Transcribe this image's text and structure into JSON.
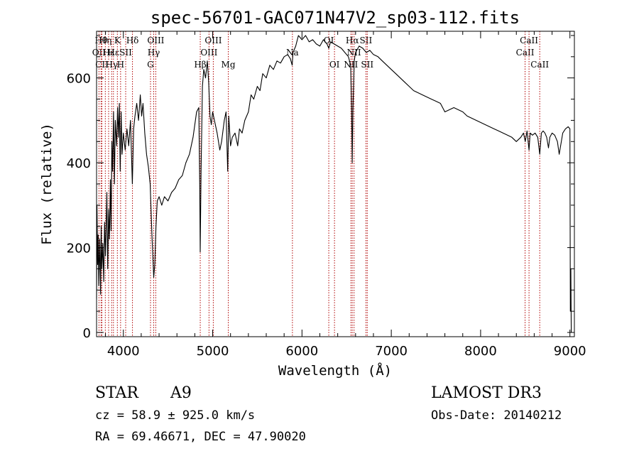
{
  "chart_data": {
    "type": "line",
    "title": "spec-56701-GAC071N47V2_sp03-112.fits",
    "xlabel": "Wavelength (Å)",
    "ylabel": "Flux (relative)",
    "xlim": [
      3700,
      9050
    ],
    "ylim": [
      -10,
      710
    ],
    "xticks": [
      4000,
      5000,
      6000,
      7000,
      8000,
      9000
    ],
    "yticks": [
      0,
      200,
      400,
      600
    ],
    "grid": false,
    "series": [
      {
        "points": [
          [
            3700,
            80
          ],
          [
            3705,
            300
          ],
          [
            3712,
            160
          ],
          [
            3718,
            230
          ],
          [
            3725,
            110
          ],
          [
            3735,
            220
          ],
          [
            3745,
            90
          ],
          [
            3752,
            250
          ],
          [
            3760,
            150
          ],
          [
            3770,
            210
          ],
          [
            3780,
            120
          ],
          [
            3790,
            260
          ],
          [
            3800,
            180
          ],
          [
            3815,
            330
          ],
          [
            3825,
            150
          ],
          [
            3835,
            290
          ],
          [
            3845,
            220
          ],
          [
            3855,
            360
          ],
          [
            3862,
            240
          ],
          [
            3872,
            450
          ],
          [
            3880,
            380
          ],
          [
            3890,
            520
          ],
          [
            3900,
            350
          ],
          [
            3910,
            500
          ],
          [
            3925,
            440
          ],
          [
            3935,
            530
          ],
          [
            3945,
            460
          ],
          [
            3955,
            540
          ],
          [
            3965,
            380
          ],
          [
            3975,
            520
          ],
          [
            3985,
            420
          ],
          [
            4000,
            470
          ],
          [
            4020,
            430
          ],
          [
            4040,
            480
          ],
          [
            4060,
            440
          ],
          [
            4080,
            500
          ],
          [
            4101,
            350
          ],
          [
            4115,
            480
          ],
          [
            4130,
            510
          ],
          [
            4150,
            540
          ],
          [
            4170,
            500
          ],
          [
            4190,
            560
          ],
          [
            4205,
            510
          ],
          [
            4220,
            540
          ],
          [
            4240,
            470
          ],
          [
            4260,
            420
          ],
          [
            4280,
            390
          ],
          [
            4300,
            350
          ],
          [
            4320,
            230
          ],
          [
            4340,
            130
          ],
          [
            4352,
            160
          ],
          [
            4365,
            250
          ],
          [
            4380,
            310
          ],
          [
            4400,
            320
          ],
          [
            4430,
            300
          ],
          [
            4460,
            320
          ],
          [
            4500,
            310
          ],
          [
            4540,
            330
          ],
          [
            4580,
            340
          ],
          [
            4620,
            360
          ],
          [
            4660,
            370
          ],
          [
            4700,
            400
          ],
          [
            4740,
            420
          ],
          [
            4780,
            460
          ],
          [
            4820,
            520
          ],
          [
            4845,
            530
          ],
          [
            4855,
            350
          ],
          [
            4861,
            190
          ],
          [
            4870,
            380
          ],
          [
            4885,
            580
          ],
          [
            4900,
            620
          ],
          [
            4920,
            600
          ],
          [
            4940,
            640
          ],
          [
            4955,
            590
          ],
          [
            4970,
            510
          ],
          [
            4985,
            490
          ],
          [
            5000,
            520
          ],
          [
            5020,
            500
          ],
          [
            5050,
            470
          ],
          [
            5080,
            430
          ],
          [
            5100,
            450
          ],
          [
            5130,
            500
          ],
          [
            5150,
            520
          ],
          [
            5168,
            380
          ],
          [
            5180,
            510
          ],
          [
            5200,
            440
          ],
          [
            5220,
            460
          ],
          [
            5250,
            470
          ],
          [
            5280,
            440
          ],
          [
            5300,
            480
          ],
          [
            5330,
            470
          ],
          [
            5360,
            500
          ],
          [
            5400,
            520
          ],
          [
            5430,
            560
          ],
          [
            5460,
            550
          ],
          [
            5500,
            580
          ],
          [
            5530,
            570
          ],
          [
            5560,
            610
          ],
          [
            5600,
            600
          ],
          [
            5640,
            630
          ],
          [
            5680,
            620
          ],
          [
            5720,
            640
          ],
          [
            5760,
            635
          ],
          [
            5800,
            650
          ],
          [
            5840,
            655
          ],
          [
            5870,
            645
          ],
          [
            5890,
            630
          ],
          [
            5900,
            660
          ],
          [
            5930,
            675
          ],
          [
            5960,
            700
          ],
          [
            6000,
            690
          ],
          [
            6040,
            700
          ],
          [
            6080,
            685
          ],
          [
            6120,
            690
          ],
          [
            6160,
            680
          ],
          [
            6200,
            675
          ],
          [
            6240,
            690
          ],
          [
            6280,
            680
          ],
          [
            6300,
            670
          ],
          [
            6320,
            685
          ],
          [
            6360,
            680
          ],
          [
            6400,
            675
          ],
          [
            6440,
            670
          ],
          [
            6480,
            660
          ],
          [
            6520,
            650
          ],
          [
            6545,
            630
          ],
          [
            6556,
            520
          ],
          [
            6563,
            400
          ],
          [
            6570,
            520
          ],
          [
            6585,
            640
          ],
          [
            6600,
            660
          ],
          [
            6640,
            675
          ],
          [
            6680,
            670
          ],
          [
            6720,
            660
          ],
          [
            6760,
            665
          ],
          [
            6800,
            655
          ],
          [
            6850,
            650
          ],
          [
            6900,
            640
          ],
          [
            6950,
            630
          ],
          [
            7000,
            620
          ],
          [
            7050,
            610
          ],
          [
            7100,
            600
          ],
          [
            7150,
            590
          ],
          [
            7200,
            580
          ],
          [
            7250,
            570
          ],
          [
            7300,
            565
          ],
          [
            7350,
            560
          ],
          [
            7400,
            555
          ],
          [
            7450,
            550
          ],
          [
            7500,
            545
          ],
          [
            7550,
            540
          ],
          [
            7600,
            520
          ],
          [
            7650,
            525
          ],
          [
            7700,
            530
          ],
          [
            7750,
            525
          ],
          [
            7800,
            520
          ],
          [
            7850,
            510
          ],
          [
            7900,
            505
          ],
          [
            7950,
            500
          ],
          [
            8000,
            495
          ],
          [
            8050,
            490
          ],
          [
            8100,
            485
          ],
          [
            8150,
            480
          ],
          [
            8200,
            475
          ],
          [
            8250,
            470
          ],
          [
            8300,
            465
          ],
          [
            8350,
            460
          ],
          [
            8400,
            450
          ],
          [
            8450,
            460
          ],
          [
            8480,
            470
          ],
          [
            8500,
            450
          ],
          [
            8520,
            475
          ],
          [
            8542,
            430
          ],
          [
            8555,
            470
          ],
          [
            8580,
            465
          ],
          [
            8610,
            470
          ],
          [
            8640,
            460
          ],
          [
            8662,
            420
          ],
          [
            8680,
            470
          ],
          [
            8700,
            475
          ],
          [
            8720,
            470
          ],
          [
            8740,
            460
          ],
          [
            8760,
            435
          ],
          [
            8775,
            460
          ],
          [
            8800,
            470
          ],
          [
            8830,
            465
          ],
          [
            8860,
            450
          ],
          [
            8880,
            420
          ],
          [
            8900,
            445
          ],
          [
            8920,
            470
          ],
          [
            8950,
            480
          ],
          [
            8980,
            485
          ],
          [
            9000,
            480
          ],
          [
            9005,
            50
          ],
          [
            9010,
            150
          ],
          [
            9015,
            0
          ]
        ]
      }
    ],
    "line_markers": [
      {
        "w": 3727,
        "label": "OII",
        "row": 2
      },
      {
        "w": 3750,
        "label": "Hθ",
        "row": 1
      },
      {
        "w": 3760,
        "label": "CII",
        "row": 3
      },
      {
        "w": 3798,
        "label": "Hη",
        "row": 1
      },
      {
        "w": 3835,
        "label": "Hε",
        "row": 2
      },
      {
        "w": 3869,
        "label": "Hγ",
        "row": 3
      },
      {
        "w": 3889,
        "label": "Hε",
        "row": 2
      },
      {
        "w": 3933,
        "label": "K",
        "row": 1
      },
      {
        "w": 3969,
        "label": "H",
        "row": 3
      },
      {
        "w": 4026,
        "label": "SII",
        "row": 2
      },
      {
        "w": 4102,
        "label": "Hδ",
        "row": 1
      },
      {
        "w": 4304,
        "label": "G",
        "row": 3
      },
      {
        "w": 4340,
        "label": "Hγ",
        "row": 2
      },
      {
        "w": 4363,
        "label": "OIII",
        "row": 1
      },
      {
        "w": 4861,
        "label": "Hβ",
        "row": 3
      },
      {
        "w": 4959,
        "label": "OIII",
        "row": 2
      },
      {
        "w": 5007,
        "label": "OIII",
        "row": 1
      },
      {
        "w": 5175,
        "label": "Mg",
        "row": 3
      },
      {
        "w": 5893,
        "label": "Na",
        "row": 2
      },
      {
        "w": 6300,
        "label": "OI",
        "row": 1
      },
      {
        "w": 6364,
        "label": "OI",
        "row": 3
      },
      {
        "w": 6548,
        "label": "NII",
        "row": 3
      },
      {
        "w": 6563,
        "label": "Hα",
        "row": 1
      },
      {
        "w": 6583,
        "label": "NII",
        "row": 2
      },
      {
        "w": 6716,
        "label": "SII",
        "row": 1
      },
      {
        "w": 6731,
        "label": "SII",
        "row": 3
      },
      {
        "w": 8498,
        "label": "CaII",
        "row": 2
      },
      {
        "w": 8542,
        "label": "CaII",
        "row": 1
      },
      {
        "w": 8662,
        "label": "CaII",
        "row": 3
      }
    ],
    "marker_color": "#b00000"
  },
  "info": {
    "class_label": "STAR",
    "subclass": "A9",
    "cz": "cz = 58.9 ± 925.0 km/s",
    "radec": "RA =  69.46671, DEC =  47.90020",
    "survey": "LAMOST DR3",
    "obs_date": "Obs-Date: 20140212"
  }
}
